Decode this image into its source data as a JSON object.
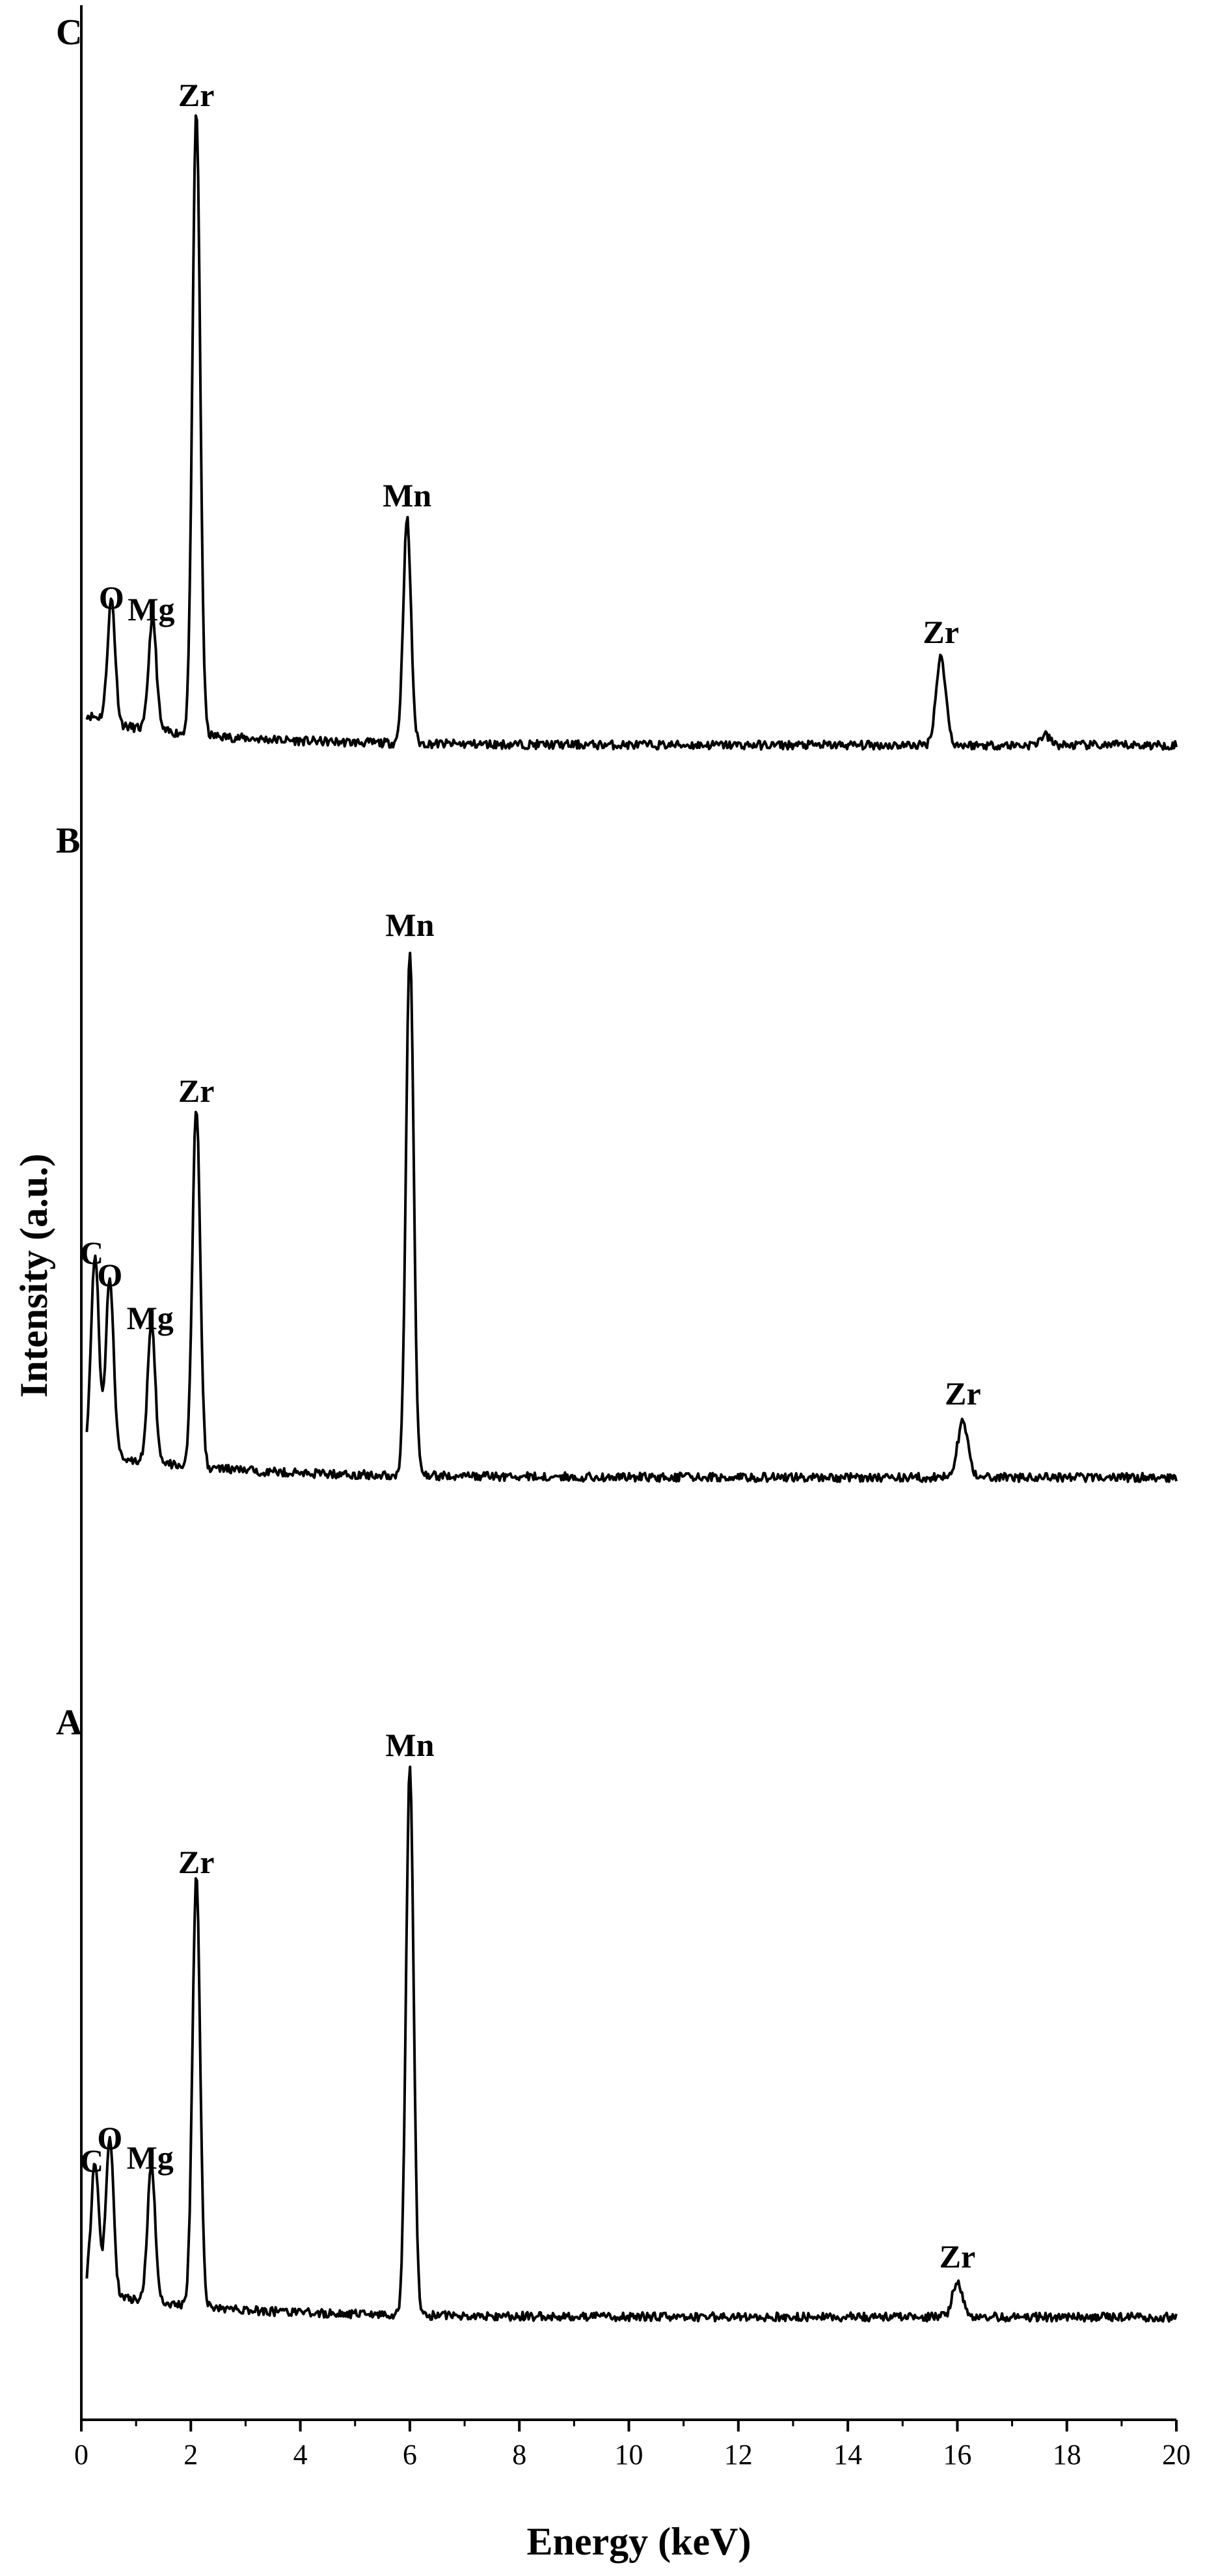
{
  "chart_data": {
    "type": "line",
    "title": "",
    "xlabel": "Energy (keV)",
    "ylabel": "Intensity (a.u.)",
    "xlim": [
      0,
      20
    ],
    "x_ticks": [
      0,
      2,
      4,
      6,
      8,
      10,
      12,
      14,
      16,
      18,
      20
    ],
    "x_tick_labels": [
      "0",
      "2",
      "4",
      "6",
      "8",
      "10",
      "12",
      "14",
      "16",
      "18",
      "20"
    ],
    "y_ticks_shown": false,
    "grid": false,
    "legend": "none",
    "line_color": "#000000",
    "panels": [
      {
        "name": "C",
        "baseline": 0.05,
        "peaks": [
          {
            "element": "O",
            "energy": 0.55,
            "intensity": 0.62
          },
          {
            "element": "Mg",
            "energy": 1.3,
            "intensity": 0.58
          },
          {
            "element": "Zr",
            "energy": 2.1,
            "intensity": 3.2
          },
          {
            "element": "Mn",
            "energy": 5.95,
            "intensity": 1.15
          },
          {
            "element": "Zr",
            "energy": 15.7,
            "intensity": 0.45
          },
          {
            "element": "",
            "energy": 17.6,
            "intensity": 0.05
          }
        ]
      },
      {
        "name": "B",
        "baseline": 0.05,
        "peaks": [
          {
            "element": "C",
            "energy": 0.25,
            "intensity": 1.0
          },
          {
            "element": "O",
            "energy": 0.52,
            "intensity": 0.9
          },
          {
            "element": "Mg",
            "energy": 1.28,
            "intensity": 0.7
          },
          {
            "element": "Zr",
            "energy": 2.1,
            "intensity": 1.85
          },
          {
            "element": "Mn",
            "energy": 6.0,
            "intensity": 2.7
          },
          {
            "element": "Zr",
            "energy": 16.1,
            "intensity": 0.3
          }
        ]
      },
      {
        "name": "A",
        "baseline": 0.05,
        "peaks": [
          {
            "element": "C",
            "energy": 0.25,
            "intensity": 0.65
          },
          {
            "element": "O",
            "energy": 0.52,
            "intensity": 0.78
          },
          {
            "element": "Mg",
            "energy": 1.28,
            "intensity": 0.7
          },
          {
            "element": "Zr",
            "energy": 2.1,
            "intensity": 2.2
          },
          {
            "element": "Mn",
            "energy": 6.0,
            "intensity": 2.8
          },
          {
            "element": "Zr",
            "energy": 16.0,
            "intensity": 0.18
          }
        ]
      }
    ]
  }
}
